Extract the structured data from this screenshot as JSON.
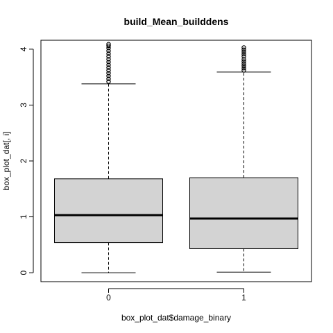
{
  "chart_data": {
    "type": "box",
    "title": "build_Mean_builddens",
    "xlabel": "box_plot_dat$damage_binary",
    "ylabel": "box_plot_dat[, i]",
    "categories": [
      "0",
      "1"
    ],
    "ylim": [
      -0.16,
      4.16
    ],
    "yticks": [
      0,
      1,
      2,
      3,
      4
    ],
    "grid": false,
    "box_fill": "#d3d3d3",
    "line_color": "#000000",
    "boxes": [
      {
        "category": "0",
        "whisker_low": 0.0,
        "q1": 0.54,
        "median": 1.03,
        "q3": 1.68,
        "whisker_high": 3.38,
        "outliers": [
          3.42,
          3.47,
          3.52,
          3.57,
          3.62,
          3.67,
          3.72,
          3.77,
          3.82,
          3.87,
          3.92,
          3.97,
          4.02,
          4.06,
          4.09
        ]
      },
      {
        "category": "1",
        "whisker_low": 0.01,
        "q1": 0.43,
        "median": 0.97,
        "q3": 1.7,
        "whisker_high": 3.59,
        "outliers": [
          3.62,
          3.66,
          3.7,
          3.74,
          3.78,
          3.82,
          3.87,
          3.91,
          3.95,
          3.99,
          4.03
        ]
      }
    ]
  }
}
